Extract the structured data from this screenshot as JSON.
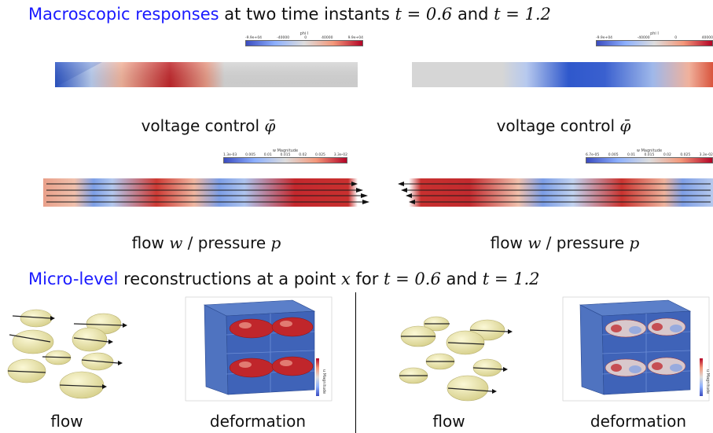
{
  "heading_macro": {
    "highlight": "Macroscopic responses",
    "rest": " at two time instants ",
    "t1": "t = 0.6",
    "and": " and ",
    "t2": "t = 1.2"
  },
  "heading_micro": {
    "highlight": "Micro-level",
    "rest": " reconstructions at a point ",
    "x": "x",
    "for": " for ",
    "t1": "t = 0.6",
    "and": " and ",
    "t2": "t = 1.2"
  },
  "panels": {
    "voltage_left": {
      "colorbar_title": "phi I",
      "ticks": [
        "-9.9e+04",
        "-60000",
        "-40000",
        "-20000",
        "0",
        "20000",
        "40000",
        "60000",
        "9.9e+04"
      ],
      "caption_text": "voltage control ",
      "caption_symbol": "φ̄"
    },
    "voltage_right": {
      "colorbar_title": "phi I",
      "ticks": [
        "-9.9e+04",
        "-60000",
        "-40000",
        "-20000",
        "0",
        "20000",
        "40000",
        "60000",
        "9.9e+04"
      ],
      "caption_text": "voltage control ",
      "caption_symbol": "φ̄"
    },
    "flow_left": {
      "colorbar_title": "w Magnitude",
      "ticks": [
        "1.3e-03",
        "0.005",
        "0.01",
        "0.015",
        "0.02",
        "0.025",
        "3.3e-02"
      ],
      "caption_a": "flow ",
      "caption_w": "w",
      "caption_b": " / pressure ",
      "caption_p": "p"
    },
    "flow_right": {
      "colorbar_title": "w Magnitude",
      "ticks": [
        "6.7e-05",
        "0.005",
        "0.01",
        "0.015",
        "0.02",
        "0.025",
        "3.3e-02"
      ],
      "caption_a": "flow ",
      "caption_w": "w",
      "caption_b": " / pressure ",
      "caption_p": "p"
    }
  },
  "micro": {
    "left_flow_caption": "flow",
    "left_deform_caption": "deformation",
    "right_flow_caption": "flow",
    "right_deform_caption": "deformation",
    "deform_colorbar_title": "u Magnitude"
  },
  "colors": {
    "highlight_blue": "#1a1aff",
    "field_red": "#b2182b",
    "field_blue": "#2c5cc5",
    "field_neutral": "#dcdcdc"
  }
}
